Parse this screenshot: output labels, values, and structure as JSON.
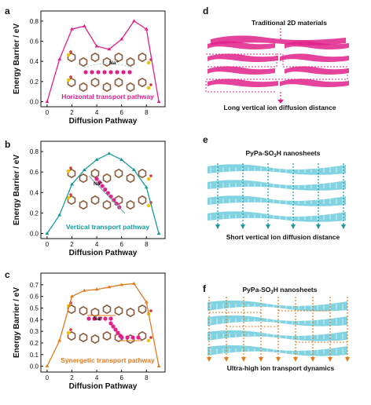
{
  "panel_letters": [
    "a",
    "b",
    "c",
    "d",
    "e",
    "f"
  ],
  "chart_data": [
    {
      "type": "line",
      "panel": "a",
      "x": [
        0,
        1,
        2,
        3,
        4,
        5,
        6,
        7,
        8,
        9
      ],
      "y": [
        0.0,
        0.42,
        0.72,
        0.75,
        0.55,
        0.52,
        0.62,
        0.8,
        0.72,
        0.0
      ],
      "xlabel": "Diffusion Pathway",
      "ylabel": "Energy Barrier / eV",
      "xlim": [
        -0.5,
        9.5
      ],
      "ylim": [
        -0.05,
        0.9
      ],
      "xticks": [
        "0",
        "2",
        "4",
        "6",
        "8"
      ],
      "yticks": [
        "0.0",
        "0.2",
        "0.4",
        "0.6",
        "0.8"
      ],
      "color": "#e0218a",
      "annotation": "Horizontal transport pathway",
      "ion_label": "Na⁺"
    },
    {
      "type": "line",
      "panel": "b",
      "x": [
        0,
        1,
        2,
        3,
        4,
        5,
        6,
        7,
        8,
        9
      ],
      "y": [
        0.0,
        0.18,
        0.48,
        0.62,
        0.72,
        0.78,
        0.72,
        0.62,
        0.45,
        0.0
      ],
      "xlabel": "Diffusion Pathway",
      "ylabel": "Energy Barrier / eV",
      "xlim": [
        -0.5,
        9.5
      ],
      "ylim": [
        -0.05,
        0.9
      ],
      "xticks": [
        "0",
        "2",
        "4",
        "6",
        "8"
      ],
      "yticks": [
        "0.0",
        "0.2",
        "0.4",
        "0.6",
        "0.8"
      ],
      "color": "#1a9a9a",
      "annotation": "Vertical transport pathway",
      "ion_label": "Na⁺"
    },
    {
      "type": "line",
      "panel": "c",
      "x": [
        0,
        1,
        2,
        3,
        4,
        5,
        6,
        7,
        8,
        9
      ],
      "y": [
        0.0,
        0.22,
        0.6,
        0.65,
        0.66,
        0.68,
        0.7,
        0.71,
        0.55,
        0.0
      ],
      "xlabel": "Diffusion Pathway",
      "ylabel": "Energy Barrier / eV",
      "xlim": [
        -0.5,
        9.5
      ],
      "ylim": [
        -0.05,
        0.8
      ],
      "xticks": [
        "0",
        "2",
        "4",
        "6",
        "8"
      ],
      "yticks": [
        "0.0",
        "0.1",
        "0.2",
        "0.3",
        "0.4",
        "0.5",
        "0.6",
        "0.7"
      ],
      "color": "#e07b1f",
      "annotation": "Synergetic transport pathway",
      "ion_label": "Na⁺"
    }
  ],
  "schematics": {
    "d": {
      "title": "Traditional 2D materials",
      "caption": "Long vertical ion diffusion distance",
      "color": "#e0218a"
    },
    "e": {
      "title_main": "PyPa-SO",
      "title_sub": "3",
      "title_end": "H nanosheets",
      "caption": "Short vertical ion diffusion distance",
      "color": "#58c4d8",
      "arrow_color": "#1a9a9a"
    },
    "f": {
      "title_main": "PyPa-SO",
      "title_sub": "3",
      "title_end": "H nanosheets",
      "caption": "Ultra-high ion transport dynamics",
      "color": "#58c4d8",
      "arrow_color": "#e07b1f"
    }
  }
}
